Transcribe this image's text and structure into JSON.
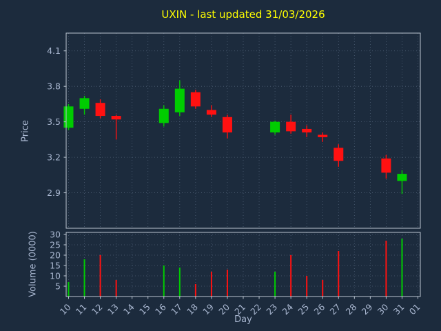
{
  "chart_data": {
    "type": "candlestick",
    "title": "UXIN - last updated 31/03/2026",
    "xlabel": "Day",
    "ylabel_price": "Price",
    "ylabel_volume": "Volume (0000)",
    "grid": true,
    "legend": "none",
    "x_tick_labels": [
      "10",
      "11",
      "12",
      "13",
      "14",
      "15",
      "16",
      "17",
      "18",
      "19",
      "20",
      "21",
      "22",
      "23",
      "24",
      "25",
      "26",
      "27",
      "28",
      "29",
      "30",
      "31",
      "01"
    ],
    "price_ticks": [
      4.1,
      3.8,
      3.5,
      3.2,
      2.9
    ],
    "price_ylim": [
      2.6,
      4.25
    ],
    "volume_ticks": [
      30,
      25,
      20,
      15,
      10,
      5
    ],
    "volume_ylim": [
      0,
      31
    ],
    "candles": [
      {
        "day": "10",
        "x_index": 0,
        "open": 3.45,
        "high": 3.65,
        "low": 3.43,
        "close": 3.63,
        "volume": 7
      },
      {
        "day": "11",
        "x_index": 1,
        "open": 3.61,
        "high": 3.72,
        "low": 3.56,
        "close": 3.7,
        "volume": 18
      },
      {
        "day": "12",
        "x_index": 2,
        "open": 3.66,
        "high": 3.69,
        "low": 3.53,
        "close": 3.55,
        "volume": 20
      },
      {
        "day": "13",
        "x_index": 3,
        "open": 3.55,
        "high": 3.56,
        "low": 3.35,
        "close": 3.52,
        "volume": 8
      },
      {
        "day": "16",
        "x_index": 6,
        "open": 3.49,
        "high": 3.64,
        "low": 3.46,
        "close": 3.61,
        "volume": 15
      },
      {
        "day": "17",
        "x_index": 7,
        "open": 3.58,
        "high": 3.85,
        "low": 3.55,
        "close": 3.78,
        "volume": 14
      },
      {
        "day": "18",
        "x_index": 8,
        "open": 3.75,
        "high": 3.77,
        "low": 3.61,
        "close": 3.63,
        "volume": 6
      },
      {
        "day": "19",
        "x_index": 9,
        "open": 3.6,
        "high": 3.64,
        "low": 3.54,
        "close": 3.56,
        "volume": 12
      },
      {
        "day": "20",
        "x_index": 10,
        "open": 3.54,
        "high": 3.56,
        "low": 3.36,
        "close": 3.41,
        "volume": 13
      },
      {
        "day": "23",
        "x_index": 13,
        "open": 3.41,
        "high": 3.51,
        "low": 3.39,
        "close": 3.5,
        "volume": 12
      },
      {
        "day": "24",
        "x_index": 14,
        "open": 3.5,
        "high": 3.56,
        "low": 3.4,
        "close": 3.42,
        "volume": 20
      },
      {
        "day": "25",
        "x_index": 15,
        "open": 3.44,
        "high": 3.47,
        "low": 3.37,
        "close": 3.41,
        "volume": 10
      },
      {
        "day": "26",
        "x_index": 16,
        "open": 3.39,
        "high": 3.41,
        "low": 3.33,
        "close": 3.37,
        "volume": 8
      },
      {
        "day": "27",
        "x_index": 17,
        "open": 3.28,
        "high": 3.31,
        "low": 3.12,
        "close": 3.17,
        "volume": 22
      },
      {
        "day": "30",
        "x_index": 20,
        "open": 3.19,
        "high": 3.22,
        "low": 3.02,
        "close": 3.07,
        "volume": 27
      },
      {
        "day": "31",
        "x_index": 21,
        "open": 3.0,
        "high": 3.09,
        "low": 2.89,
        "close": 3.06,
        "volume": 28
      }
    ],
    "colors": {
      "up": "#00cc00",
      "down": "#ff1111",
      "title": "#ffff00",
      "background": "#1c2b3d",
      "tick_text": "#a9b7d0",
      "grid": "#4f6076",
      "axis_border": "#bcc6d1"
    }
  }
}
